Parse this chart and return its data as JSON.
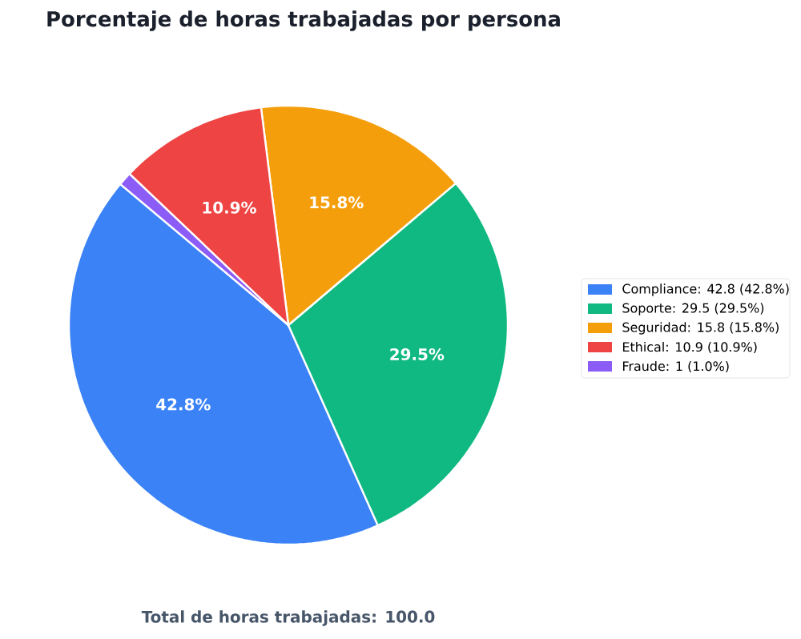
{
  "chart_data": {
    "type": "pie",
    "title": "Porcentaje de horas trabajadas por persona",
    "categories": [
      "Compliance: 42.8 (42.8%)",
      "Soporte: 29.5 (29.5%)",
      "Seguridad: 15.8 (15.8%)",
      "Ethical: 10.9 (10.9%)",
      "Fraude: 1 (1.0%)"
    ],
    "values": [
      42.8,
      29.5,
      15.8,
      10.9,
      1
    ],
    "colors": [
      "#3b82f6",
      "#10b981",
      "#f59e0b",
      "#ef4444",
      "#8b5cf6"
    ],
    "value_labels": [
      "42.8%",
      "29.5%",
      "15.8%",
      "10.9%",
      null
    ],
    "legend": "right",
    "annotations": [
      "Total de horas trabajadas: 100.0"
    ]
  }
}
